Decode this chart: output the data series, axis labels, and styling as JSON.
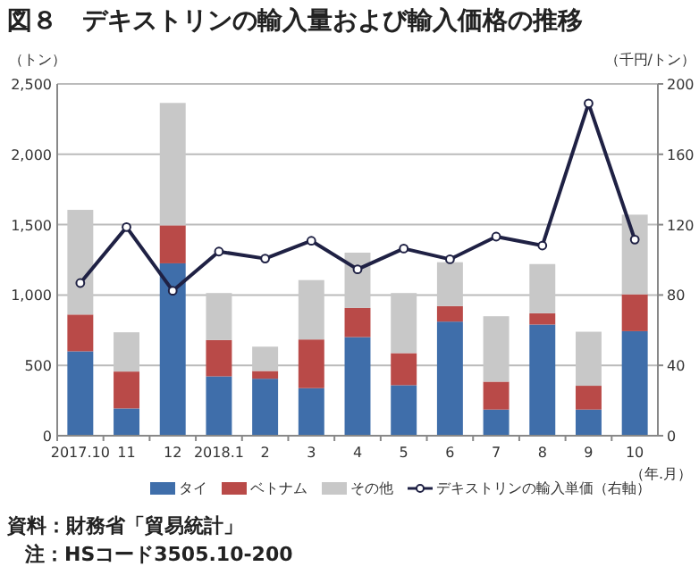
{
  "chart_data": {
    "type": "bar",
    "stacked": true,
    "title": "図８　デキストリンの輸入量および輸入価格の推移",
    "ylabel": "（トン）",
    "y2label": "（千円/トン）",
    "xlabel": "（年.月）",
    "annotations": [
      "資料：財務省「貿易統計」",
      "注：HSコード3505.10-200"
    ],
    "categories": [
      "2017.10",
      "11",
      "12",
      "2018.1",
      "2",
      "3",
      "4",
      "5",
      "6",
      "7",
      "8",
      "9",
      "10"
    ],
    "series": [
      {
        "name": "タイ",
        "color": "#3f6eaa",
        "values": [
          600,
          194,
          1225,
          422,
          405,
          338,
          701,
          359,
          811,
          186,
          790,
          186,
          743
        ]
      },
      {
        "name": "ベトナム",
        "color": "#b94a48",
        "values": [
          261,
          262,
          270,
          258,
          55,
          346,
          207,
          228,
          110,
          198,
          80,
          169,
          262
        ]
      },
      {
        "name": "その他",
        "color": "#c8c8c8",
        "values": [
          744,
          279,
          870,
          334,
          173,
          422,
          393,
          427,
          312,
          465,
          350,
          384,
          566
        ]
      },
      {
        "name": "デキストリンの輸入単価（右軸）",
        "type": "line",
        "axis": "y2",
        "color": "#1f2144",
        "marker": "circle",
        "values": [
          86.8,
          118.6,
          82.4,
          104.7,
          100.7,
          110.8,
          94.6,
          106.4,
          100.3,
          113.2,
          108.1,
          188.9,
          111.5
        ]
      }
    ],
    "ylim": [
      0,
      2500
    ],
    "yticks": [
      0,
      500,
      {
        "value": 1000,
        "label": "1,000"
      },
      {
        "value": 1500,
        "label": "1,500"
      },
      {
        "value": 2000,
        "label": "2,000"
      },
      {
        "value": 2500,
        "label": "2,500"
      }
    ],
    "y2lim": [
      0,
      200
    ],
    "y2ticks": [
      0,
      40,
      80,
      120,
      160,
      200
    ],
    "grid": "y",
    "legend": "bottom"
  }
}
